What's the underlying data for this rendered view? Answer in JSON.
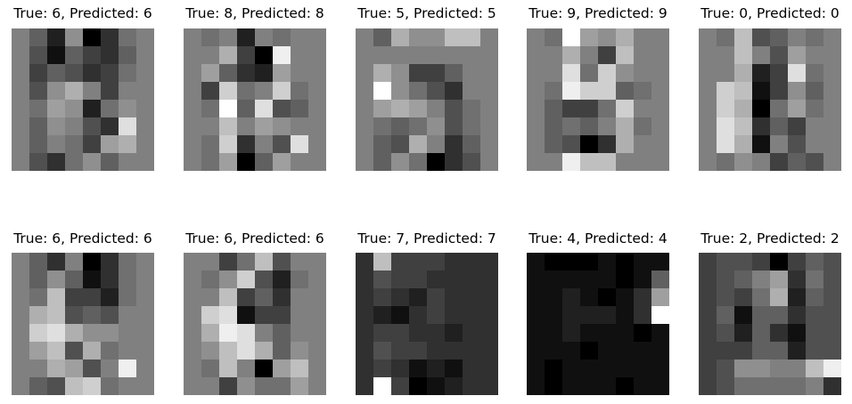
{
  "chart_data": {
    "type": "heatmap",
    "colormap": "gray",
    "value_range": [
      0,
      16
    ],
    "layout": {
      "rows": 2,
      "cols": 5
    },
    "panels": [
      {
        "title": "True: 6, Predicted: 6",
        "true": 6,
        "predicted": 6,
        "pixels": [
          [
            8,
            6,
            2,
            9,
            0,
            3,
            7,
            8
          ],
          [
            8,
            5,
            1,
            6,
            4,
            3,
            6,
            8
          ],
          [
            8,
            4,
            6,
            5,
            3,
            4,
            7,
            8
          ],
          [
            8,
            5,
            9,
            11,
            8,
            4,
            8,
            8
          ],
          [
            8,
            7,
            10,
            9,
            2,
            7,
            9,
            8
          ],
          [
            8,
            6,
            9,
            8,
            5,
            3,
            14,
            8
          ],
          [
            8,
            6,
            8,
            7,
            4,
            10,
            11,
            8
          ],
          [
            8,
            5,
            3,
            7,
            9,
            6,
            8,
            8
          ]
        ]
      },
      {
        "title": "True: 8, Predicted: 8",
        "true": 8,
        "predicted": 8,
        "pixels": [
          [
            8,
            7,
            8,
            2,
            8,
            7,
            8,
            8
          ],
          [
            8,
            8,
            11,
            4,
            0,
            15,
            8,
            8
          ],
          [
            8,
            10,
            6,
            3,
            2,
            10,
            8,
            8
          ],
          [
            8,
            4,
            13,
            7,
            8,
            13,
            7,
            8
          ],
          [
            8,
            7,
            16,
            6,
            14,
            5,
            6,
            8
          ],
          [
            8,
            8,
            12,
            8,
            10,
            9,
            8,
            8
          ],
          [
            8,
            7,
            13,
            3,
            8,
            5,
            14,
            8
          ],
          [
            8,
            7,
            10,
            0,
            6,
            10,
            8,
            8
          ]
        ]
      },
      {
        "title": "True: 5, Predicted: 5",
        "true": 5,
        "predicted": 5,
        "pixels": [
          [
            8,
            6,
            11,
            9,
            9,
            12,
            12,
            8
          ],
          [
            8,
            8,
            8,
            8,
            8,
            8,
            8,
            8
          ],
          [
            8,
            11,
            9,
            4,
            4,
            6,
            8,
            8
          ],
          [
            8,
            16,
            9,
            7,
            5,
            3,
            8,
            8
          ],
          [
            8,
            10,
            11,
            10,
            8,
            5,
            7,
            8
          ],
          [
            8,
            7,
            6,
            7,
            9,
            5,
            7,
            8
          ],
          [
            8,
            6,
            5,
            11,
            8,
            3,
            6,
            8
          ],
          [
            8,
            6,
            9,
            7,
            0,
            3,
            5,
            8
          ]
        ]
      },
      {
        "title": "True: 9, Predicted: 9",
        "true": 9,
        "predicted": 9,
        "pixels": [
          [
            8,
            7,
            16,
            10,
            9,
            11,
            8,
            8
          ],
          [
            8,
            8,
            11,
            8,
            4,
            12,
            8,
            8
          ],
          [
            8,
            8,
            14,
            7,
            13,
            9,
            8,
            8
          ],
          [
            8,
            7,
            15,
            13,
            13,
            6,
            7,
            8
          ],
          [
            8,
            6,
            4,
            4,
            7,
            13,
            8,
            8
          ],
          [
            8,
            6,
            7,
            6,
            8,
            11,
            7,
            8
          ],
          [
            8,
            6,
            5,
            0,
            3,
            11,
            8,
            8
          ],
          [
            8,
            8,
            15,
            12,
            12,
            8,
            8,
            8
          ]
        ]
      },
      {
        "title": "True: 0, Predicted: 0",
        "true": 0,
        "predicted": 0,
        "pixels": [
          [
            8,
            7,
            12,
            5,
            6,
            8,
            7,
            8
          ],
          [
            8,
            8,
            12,
            8,
            5,
            10,
            8,
            8
          ],
          [
            8,
            8,
            11,
            2,
            4,
            14,
            7,
            8
          ],
          [
            8,
            13,
            12,
            1,
            4,
            9,
            6,
            8
          ],
          [
            8,
            13,
            11,
            0,
            7,
            10,
            7,
            8
          ],
          [
            8,
            14,
            12,
            3,
            6,
            4,
            8,
            8
          ],
          [
            8,
            14,
            11,
            1,
            8,
            5,
            8,
            8
          ],
          [
            8,
            7,
            9,
            8,
            4,
            6,
            5,
            8
          ]
        ]
      },
      {
        "title": "True: 6, Predicted: 6",
        "true": 6,
        "predicted": 6,
        "pixels": [
          [
            8,
            6,
            3,
            8,
            0,
            3,
            7,
            8
          ],
          [
            8,
            6,
            9,
            6,
            1,
            3,
            7,
            8
          ],
          [
            8,
            7,
            12,
            4,
            4,
            2,
            7,
            8
          ],
          [
            8,
            11,
            12,
            5,
            6,
            5,
            8,
            8
          ],
          [
            8,
            13,
            14,
            11,
            9,
            9,
            8,
            8
          ],
          [
            8,
            10,
            12,
            5,
            11,
            7,
            8,
            8
          ],
          [
            8,
            8,
            11,
            10,
            5,
            8,
            15,
            8
          ],
          [
            8,
            6,
            5,
            12,
            13,
            7,
            8,
            8
          ]
        ]
      },
      {
        "title": "True: 6, Predicted: 6",
        "true": 6,
        "predicted": 6,
        "pixels": [
          [
            8,
            8,
            4,
            7,
            12,
            5,
            8,
            8
          ],
          [
            8,
            7,
            9,
            13,
            5,
            2,
            7,
            8
          ],
          [
            8,
            8,
            12,
            4,
            6,
            3,
            8,
            8
          ],
          [
            8,
            13,
            14,
            1,
            4,
            4,
            8,
            8
          ],
          [
            8,
            11,
            15,
            14,
            8,
            6,
            8,
            8
          ],
          [
            8,
            9,
            12,
            14,
            11,
            6,
            9,
            8
          ],
          [
            8,
            7,
            12,
            8,
            0,
            10,
            12,
            8
          ],
          [
            8,
            8,
            4,
            9,
            7,
            7,
            10,
            8
          ]
        ]
      },
      {
        "title": "True: 7, Predicted: 7",
        "true": 7,
        "predicted": 7,
        "pixels": [
          [
            3,
            12,
            4,
            4,
            4,
            3,
            3,
            3
          ],
          [
            3,
            5,
            4,
            4,
            3,
            3,
            3,
            3
          ],
          [
            3,
            4,
            3,
            2,
            4,
            3,
            3,
            3
          ],
          [
            3,
            2,
            1,
            3,
            4,
            3,
            3,
            3
          ],
          [
            3,
            4,
            4,
            3,
            3,
            2,
            3,
            3
          ],
          [
            3,
            5,
            4,
            4,
            3,
            3,
            3,
            3
          ],
          [
            3,
            4,
            3,
            1,
            2,
            1,
            3,
            3
          ],
          [
            3,
            16,
            4,
            0,
            1,
            2,
            3,
            3
          ]
        ]
      },
      {
        "title": "True: 4, Predicted: 4",
        "true": 4,
        "predicted": 4,
        "pixels": [
          [
            1,
            0,
            0,
            0,
            1,
            0,
            1,
            1
          ],
          [
            1,
            1,
            1,
            1,
            1,
            0,
            1,
            6
          ],
          [
            1,
            1,
            2,
            1,
            0,
            1,
            3,
            10
          ],
          [
            1,
            1,
            2,
            2,
            2,
            1,
            3,
            16
          ],
          [
            1,
            1,
            2,
            1,
            1,
            1,
            0,
            1
          ],
          [
            1,
            1,
            1,
            0,
            1,
            1,
            1,
            1
          ],
          [
            1,
            0,
            1,
            1,
            1,
            1,
            1,
            1
          ],
          [
            1,
            0,
            1,
            1,
            1,
            0,
            1,
            1
          ]
        ]
      },
      {
        "title": "True: 2, Predicted: 2",
        "true": 2,
        "predicted": 2,
        "pixels": [
          [
            4,
            5,
            5,
            4,
            0,
            4,
            6,
            5
          ],
          [
            4,
            5,
            6,
            8,
            10,
            3,
            7,
            5
          ],
          [
            4,
            5,
            4,
            7,
            11,
            2,
            6,
            5
          ],
          [
            4,
            6,
            1,
            6,
            6,
            3,
            5,
            5
          ],
          [
            4,
            5,
            2,
            6,
            3,
            1,
            5,
            5
          ],
          [
            4,
            4,
            4,
            6,
            6,
            2,
            5,
            5
          ],
          [
            4,
            5,
            9,
            9,
            8,
            8,
            12,
            15
          ],
          [
            4,
            5,
            7,
            7,
            7,
            7,
            8,
            3
          ]
        ]
      }
    ]
  }
}
